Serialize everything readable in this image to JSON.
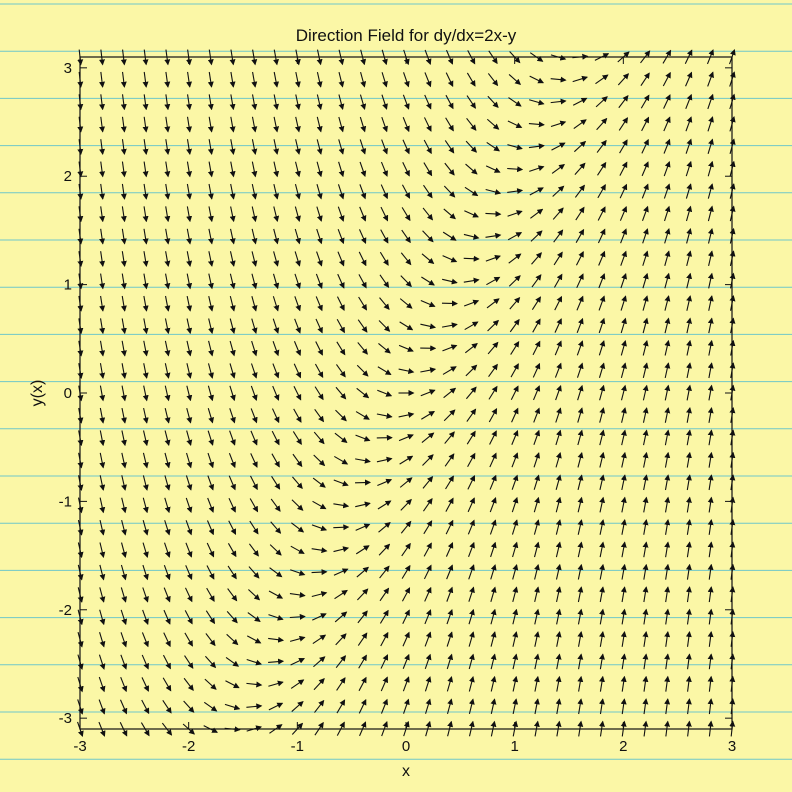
{
  "chart_data": {
    "type": "quiver",
    "title": "Direction Field for dy/dx=2x-y",
    "xlabel": "x",
    "ylabel": "y(x)",
    "equation": {
      "slope_x_coefficient": 2,
      "slope_y_coefficient": -1
    },
    "xlim": [
      -3,
      3
    ],
    "ylim": [
      -3.1,
      3.1
    ],
    "xticks": [
      -3,
      -2,
      -1,
      0,
      1,
      2,
      3
    ],
    "xtick_labels": [
      "-3",
      "-2",
      "-1",
      "0",
      "1",
      "2",
      "3"
    ],
    "yticks": [
      -3,
      -2,
      -1,
      0,
      1,
      2,
      3
    ],
    "ytick_labels": [
      "-3",
      "-2",
      "-1",
      "0",
      "1",
      "2",
      "3"
    ],
    "grid": false,
    "legend": "none",
    "colors": {
      "paper": "#fbf7a6",
      "ruled_lines": "#6fc7c9",
      "ink": "#111111",
      "plot_background": "#fbf7a6"
    }
  }
}
